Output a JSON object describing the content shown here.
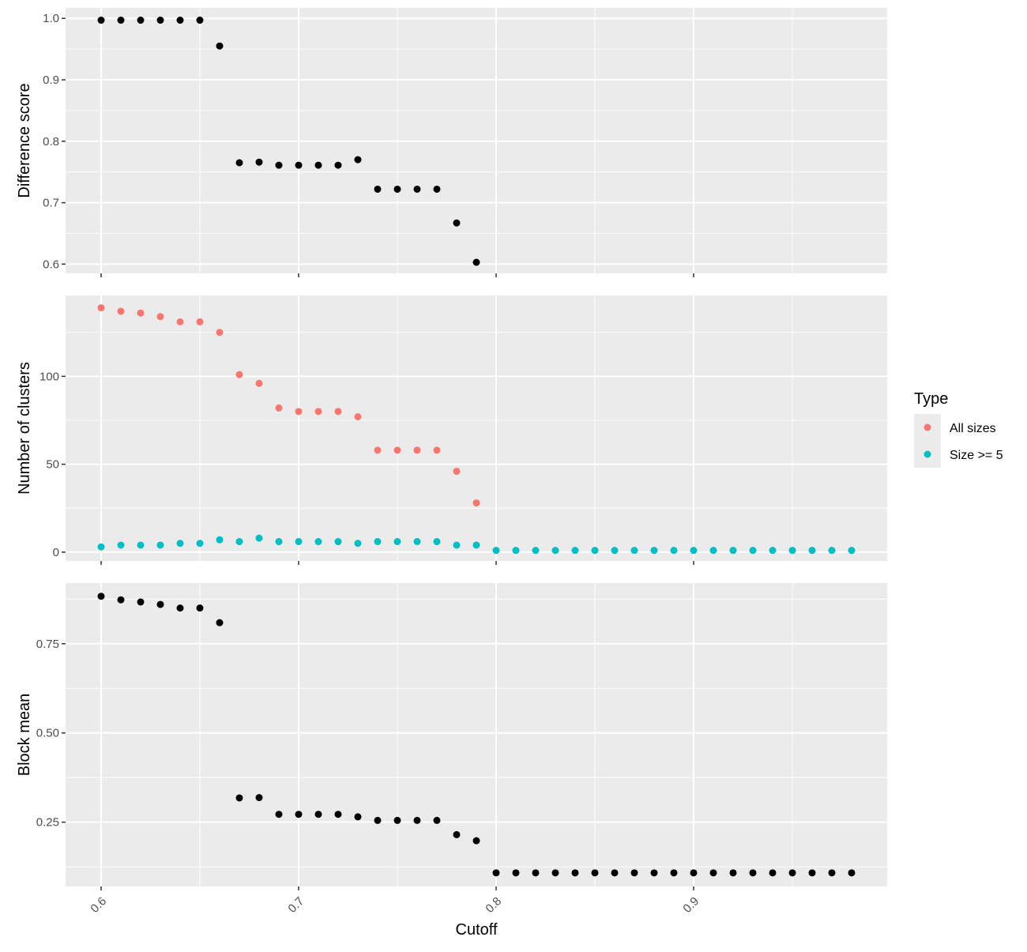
{
  "chart_data": {
    "type": "scatter",
    "xlabel": "Cutoff",
    "xlim": [
      0.582,
      0.998
    ],
    "x_ticks": [
      0.6,
      0.7,
      0.8,
      0.9
    ],
    "x_tick_labels": [
      "0.6",
      "0.7",
      "0.8",
      "0.9"
    ],
    "grid": true,
    "legend": {
      "title": "Type",
      "placement": "right",
      "entries": [
        {
          "label": "All sizes",
          "color": "#F8766D"
        },
        {
          "label": "Size >= 5",
          "color": "#00BFC4"
        }
      ]
    },
    "panels": [
      {
        "ylabel": "Difference score",
        "ylim": [
          0.585,
          1.017
        ],
        "y_ticks": [
          0.6,
          0.7,
          0.8,
          0.9,
          1.0
        ],
        "y_tick_labels": [
          "0.6",
          "0.7",
          "0.8",
          "0.9",
          "1.0"
        ],
        "series": [
          {
            "color": "#000000",
            "x": [
              0.6,
              0.61,
              0.62,
              0.63,
              0.64,
              0.65,
              0.66,
              0.67,
              0.68,
              0.69,
              0.7,
              0.71,
              0.72,
              0.73,
              0.74,
              0.75,
              0.76,
              0.77,
              0.78,
              0.79
            ],
            "y": [
              0.997,
              0.997,
              0.997,
              0.997,
              0.997,
              0.997,
              0.955,
              0.765,
              0.766,
              0.761,
              0.761,
              0.761,
              0.761,
              0.77,
              0.722,
              0.722,
              0.722,
              0.722,
              0.667,
              0.603
            ]
          }
        ]
      },
      {
        "ylabel": "Number of clusters",
        "ylim": [
          -5,
          146
        ],
        "y_ticks": [
          0,
          50,
          100
        ],
        "y_tick_labels": [
          "0",
          "50",
          "100"
        ],
        "series": [
          {
            "name": "All sizes",
            "color": "#F8766D",
            "x": [
              0.6,
              0.61,
              0.62,
              0.63,
              0.64,
              0.65,
              0.66,
              0.67,
              0.68,
              0.69,
              0.7,
              0.71,
              0.72,
              0.73,
              0.74,
              0.75,
              0.76,
              0.77,
              0.78,
              0.79
            ],
            "y": [
              139,
              137,
              136,
              134,
              131,
              131,
              125,
              101,
              96,
              82,
              80,
              80,
              80,
              77,
              58,
              58,
              58,
              58,
              46,
              28
            ]
          },
          {
            "name": "Size >= 5",
            "color": "#00BFC4",
            "x": [
              0.6,
              0.61,
              0.62,
              0.63,
              0.64,
              0.65,
              0.66,
              0.67,
              0.68,
              0.69,
              0.7,
              0.71,
              0.72,
              0.73,
              0.74,
              0.75,
              0.76,
              0.77,
              0.78,
              0.79,
              0.8,
              0.81,
              0.82,
              0.83,
              0.84,
              0.85,
              0.86,
              0.87,
              0.88,
              0.89,
              0.9,
              0.91,
              0.92,
              0.93,
              0.94,
              0.95,
              0.96,
              0.97,
              0.98
            ],
            "y": [
              3,
              4,
              4,
              4,
              5,
              5,
              7,
              6,
              8,
              6,
              6,
              6,
              6,
              5,
              6,
              6,
              6,
              6,
              4,
              4,
              1,
              1,
              1,
              1,
              1,
              1,
              1,
              1,
              1,
              1,
              1,
              1,
              1,
              1,
              1,
              1,
              1,
              1,
              1
            ]
          }
        ]
      },
      {
        "ylabel": "Block mean",
        "ylim": [
          0.07,
          0.92
        ],
        "y_ticks": [
          0.25,
          0.5,
          0.75
        ],
        "y_tick_labels": [
          "0.25",
          "0.50",
          "0.75"
        ],
        "series": [
          {
            "color": "#000000",
            "x": [
              0.6,
              0.61,
              0.62,
              0.63,
              0.64,
              0.65,
              0.66,
              0.67,
              0.68,
              0.69,
              0.7,
              0.71,
              0.72,
              0.73,
              0.74,
              0.75,
              0.76,
              0.77,
              0.78,
              0.79,
              0.8,
              0.81,
              0.82,
              0.83,
              0.84,
              0.85,
              0.86,
              0.87,
              0.88,
              0.89,
              0.9,
              0.91,
              0.92,
              0.93,
              0.94,
              0.95,
              0.96,
              0.97,
              0.98
            ],
            "y": [
              0.883,
              0.873,
              0.867,
              0.86,
              0.85,
              0.85,
              0.809,
              0.318,
              0.319,
              0.272,
              0.272,
              0.272,
              0.272,
              0.265,
              0.255,
              0.255,
              0.255,
              0.255,
              0.215,
              0.198,
              0.108,
              0.108,
              0.108,
              0.108,
              0.108,
              0.108,
              0.108,
              0.108,
              0.108,
              0.108,
              0.108,
              0.108,
              0.108,
              0.108,
              0.108,
              0.108,
              0.108,
              0.108,
              0.108
            ]
          }
        ]
      }
    ]
  }
}
